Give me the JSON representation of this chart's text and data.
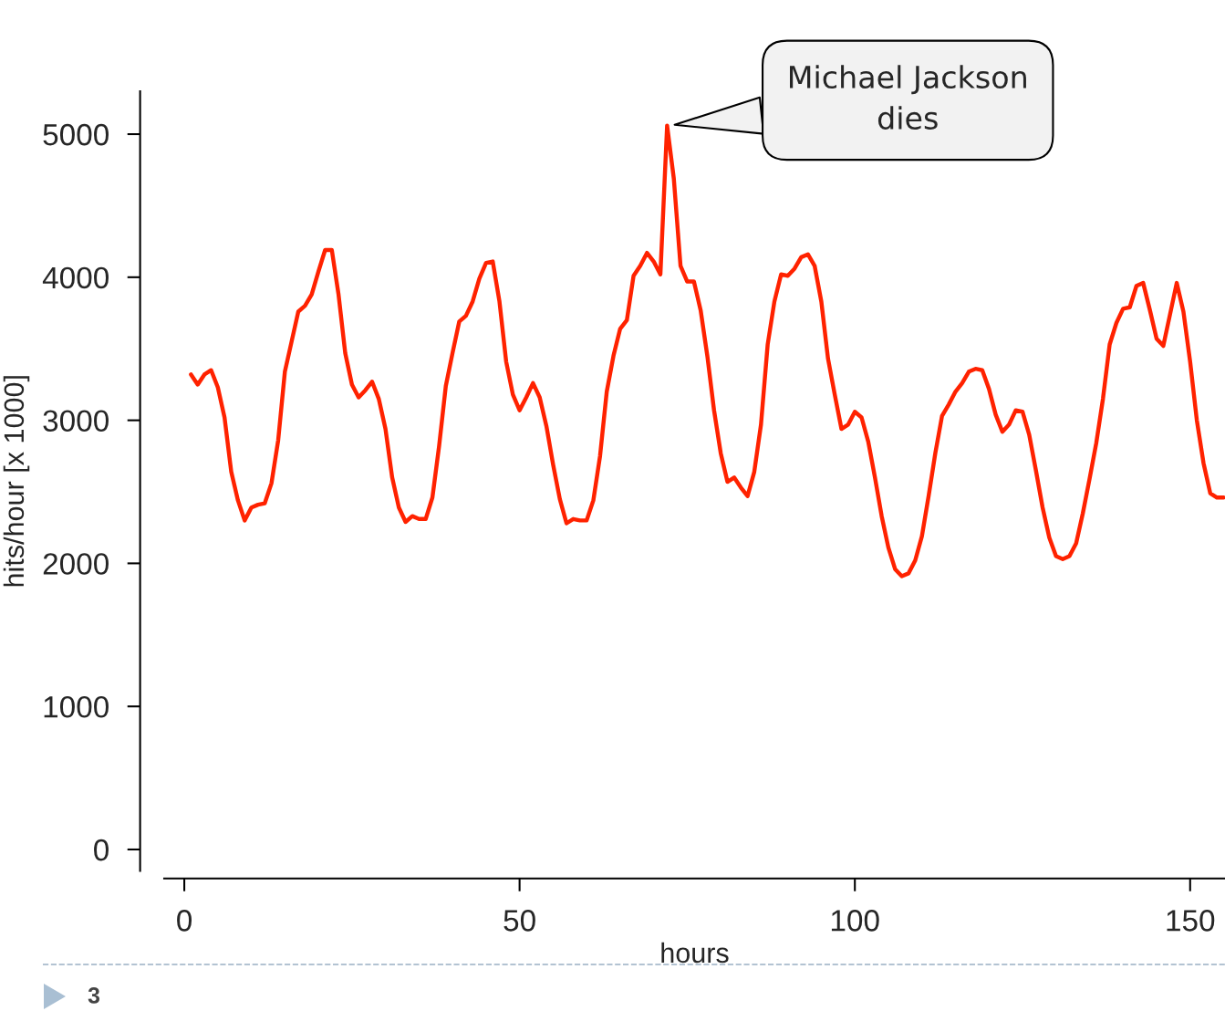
{
  "chart_data": {
    "type": "line",
    "xlabel": "hours",
    "ylabel": "hits/hour [x 1000]",
    "xlim": [
      -3,
      155.2
    ],
    "ylim": [
      -150,
      5300
    ],
    "xticks": [
      0,
      50,
      100,
      150
    ],
    "yticks": [
      0,
      1000,
      2000,
      3000,
      4000,
      5000
    ],
    "grid": false,
    "marker": "none",
    "line_style": "solid",
    "x": [
      1,
      2,
      3,
      4,
      5,
      6,
      7,
      8,
      9,
      10,
      11,
      12,
      13,
      14,
      15,
      16,
      17,
      18,
      19,
      20,
      21,
      22,
      23,
      24,
      25,
      26,
      27,
      28,
      29,
      30,
      31,
      32,
      33,
      34,
      35,
      36,
      37,
      38,
      39,
      40,
      41,
      42,
      43,
      44,
      45,
      46,
      47,
      48,
      49,
      50,
      51,
      52,
      53,
      54,
      55,
      56,
      57,
      58,
      59,
      60,
      61,
      62,
      63,
      64,
      65,
      66,
      67,
      68,
      69,
      70,
      71,
      72,
      73,
      74,
      75,
      76,
      77,
      78,
      79,
      80,
      81,
      82,
      83,
      84,
      85,
      86,
      87,
      88,
      89,
      90,
      91,
      92,
      93,
      94,
      95,
      96,
      97,
      98,
      99,
      100,
      101,
      102,
      103,
      104,
      105,
      106,
      107,
      108,
      109,
      110,
      111,
      112,
      113,
      114,
      115,
      116,
      117,
      118,
      119,
      120,
      121,
      122,
      123,
      124,
      125,
      126,
      127,
      128,
      129,
      130,
      131,
      132,
      133,
      134,
      135,
      136,
      137,
      138,
      139,
      140,
      141,
      142,
      143,
      144,
      145,
      146,
      147,
      148,
      149,
      150,
      151,
      152,
      153,
      154,
      155
    ],
    "series": [
      {
        "color": "#ff2200",
        "values": [
          3320,
          3250,
          3320,
          3350,
          3230,
          3020,
          2640,
          2440,
          2300,
          2390,
          2410,
          2420,
          2560,
          2860,
          3340,
          3550,
          3760,
          3800,
          3880,
          4040,
          4190,
          4190,
          3880,
          3470,
          3250,
          3160,
          3210,
          3270,
          3150,
          2940,
          2600,
          2390,
          2290,
          2330,
          2310,
          2310,
          2460,
          2820,
          3240,
          3470,
          3690,
          3730,
          3830,
          3990,
          4100,
          4110,
          3830,
          3410,
          3180,
          3070,
          3160,
          3260,
          3160,
          2960,
          2690,
          2450,
          2280,
          2310,
          2300,
          2300,
          2440,
          2750,
          3200,
          3450,
          3640,
          3700,
          4010,
          4080,
          4170,
          4110,
          4020,
          5060,
          4690,
          4080,
          3970,
          3970,
          3770,
          3450,
          3070,
          2770,
          2570,
          2600,
          2530,
          2470,
          2640,
          2970,
          3530,
          3830,
          4020,
          4010,
          4060,
          4140,
          4160,
          4080,
          3830,
          3430,
          3180,
          2940,
          2970,
          3060,
          3020,
          2850,
          2600,
          2330,
          2110,
          1960,
          1910,
          1930,
          2020,
          2190,
          2470,
          2770,
          3030,
          3110,
          3200,
          3260,
          3340,
          3360,
          3350,
          3220,
          3040,
          2920,
          2970,
          3070,
          3060,
          2900,
          2650,
          2390,
          2180,
          2050,
          2030,
          2050,
          2140,
          2350,
          2590,
          2840,
          3150,
          3530,
          3680,
          3780,
          3790,
          3940,
          3960,
          3770,
          3570,
          3520,
          3740,
          3960,
          3760,
          3410,
          3000,
          2700,
          2490,
          2460,
          2460
        ]
      }
    ],
    "annotations": [
      {
        "text": "Michael Jackson\ndies",
        "x": 72,
        "y": 5060
      },
      "3"
    ]
  }
}
